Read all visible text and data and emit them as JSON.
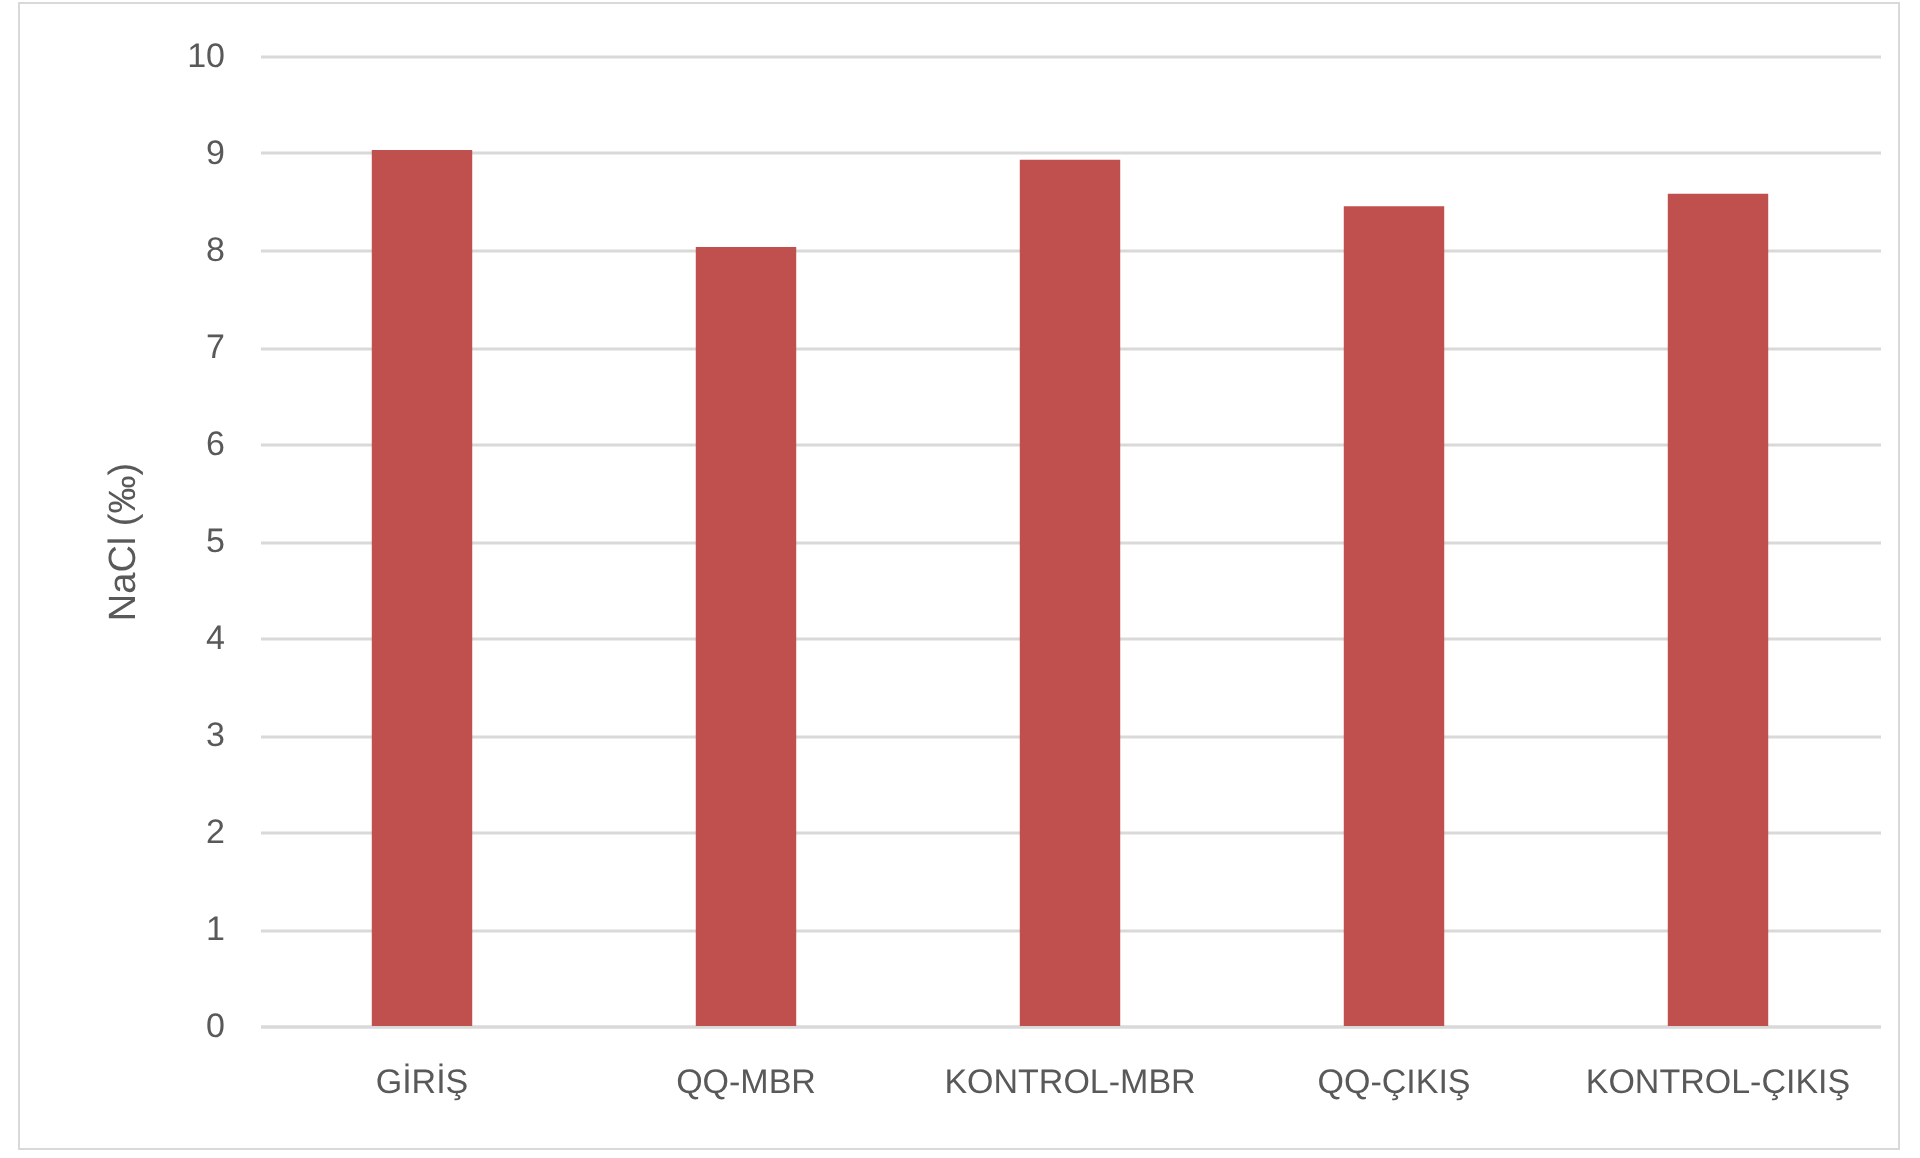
{
  "chart_data": {
    "type": "bar",
    "ylabel": "NaCl (‰)",
    "categories": [
      "GİRİŞ",
      "QQ-MBR",
      "KONTROL-MBR",
      "QQ-ÇIKIŞ",
      "KONTROL-ÇIKIŞ"
    ],
    "values": [
      9.03,
      8.03,
      8.93,
      8.45,
      8.58
    ],
    "color": "#c0504d",
    "ylim": [
      0,
      10
    ],
    "yticks": [
      0,
      1,
      2,
      3,
      4,
      5,
      6,
      7,
      8,
      9,
      10
    ],
    "grid": "y"
  }
}
